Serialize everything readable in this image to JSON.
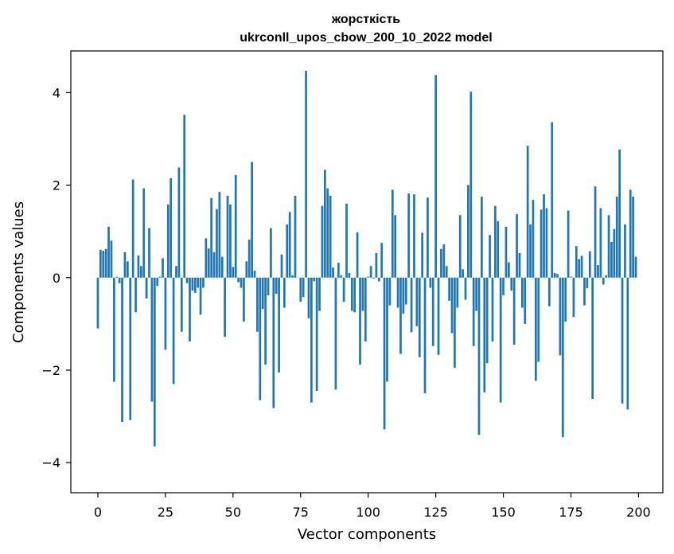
{
  "chart_data": {
    "type": "bar",
    "title_line1": "жорсткість",
    "title_line2": "ukrconll_upos_cbow_200_10_2022 model",
    "xlabel": "Vector components",
    "ylabel": "Components values",
    "xlim": [
      -10,
      209
    ],
    "ylim": [
      -4.65,
      4.9
    ],
    "xticks": [
      0,
      25,
      50,
      75,
      100,
      125,
      150,
      175,
      200
    ],
    "xtick_labels": [
      "0",
      "25",
      "50",
      "75",
      "100",
      "125",
      "150",
      "175",
      "200"
    ],
    "yticks": [
      -4,
      -2,
      0,
      2,
      4
    ],
    "ytick_labels": [
      "−4",
      "−2",
      "0",
      "2",
      "4"
    ],
    "bar_color": "#1f77b4",
    "grid": false,
    "x": [
      0,
      1,
      2,
      3,
      4,
      5,
      6,
      7,
      8,
      9,
      10,
      11,
      12,
      13,
      14,
      15,
      16,
      17,
      18,
      19,
      20,
      21,
      22,
      23,
      24,
      25,
      26,
      27,
      28,
      29,
      30,
      31,
      32,
      33,
      34,
      35,
      36,
      37,
      38,
      39,
      40,
      41,
      42,
      43,
      44,
      45,
      46,
      47,
      48,
      49,
      50,
      51,
      52,
      53,
      54,
      55,
      56,
      57,
      58,
      59,
      60,
      61,
      62,
      63,
      64,
      65,
      66,
      67,
      68,
      69,
      70,
      71,
      72,
      73,
      74,
      75,
      76,
      77,
      78,
      79,
      80,
      81,
      82,
      83,
      84,
      85,
      86,
      87,
      88,
      89,
      90,
      91,
      92,
      93,
      94,
      95,
      96,
      97,
      98,
      99,
      100,
      101,
      102,
      103,
      104,
      105,
      106,
      107,
      108,
      109,
      110,
      111,
      112,
      113,
      114,
      115,
      116,
      117,
      118,
      119,
      120,
      121,
      122,
      123,
      124,
      125,
      126,
      127,
      128,
      129,
      130,
      131,
      132,
      133,
      134,
      135,
      136,
      137,
      138,
      139,
      140,
      141,
      142,
      143,
      144,
      145,
      146,
      147,
      148,
      149,
      150,
      151,
      152,
      153,
      154,
      155,
      156,
      157,
      158,
      159,
      160,
      161,
      162,
      163,
      164,
      165,
      166,
      167,
      168,
      169,
      170,
      171,
      172,
      173,
      174,
      175,
      176,
      177,
      178,
      179,
      180,
      181,
      182,
      183,
      184,
      185,
      186,
      187,
      188,
      189,
      190,
      191,
      192,
      193,
      194,
      195,
      196,
      197,
      198,
      199
    ],
    "values": [
      -1.1,
      0.6,
      0.58,
      0.62,
      1.1,
      0.8,
      -2.25,
      0.02,
      -0.12,
      -3.12,
      0.55,
      0.35,
      -3.08,
      2.12,
      -0.75,
      0.48,
      0.25,
      1.93,
      -0.45,
      1.07,
      -2.68,
      -3.65,
      -0.18,
      0.02,
      0.42,
      -1.56,
      1.58,
      2.15,
      -2.3,
      0.25,
      2.38,
      -1.17,
      3.52,
      -0.12,
      -1.38,
      -0.28,
      -0.33,
      -0.22,
      -0.8,
      -0.22,
      0.85,
      0.63,
      1.72,
      0.55,
      1.48,
      1.85,
      0.45,
      -1.28,
      1.77,
      1.58,
      0.23,
      2.22,
      -0.1,
      -0.22,
      -0.95,
      0.35,
      0.82,
      2.5,
      0.15,
      -1.17,
      -2.65,
      -0.68,
      -1.88,
      -0.38,
      1.07,
      -2.82,
      -0.35,
      -2.05,
      0.5,
      -0.65,
      1.15,
      1.42,
      0.05,
      1.77,
      0.0,
      -0.52,
      -0.42,
      4.47,
      -0.88,
      -2.7,
      -0.08,
      -2.45,
      -0.72,
      1.55,
      2.33,
      1.93,
      1.77,
      0.22,
      -2.42,
      0.32,
      0.05,
      -0.52,
      1.6,
      0.1,
      -0.72,
      -0.75,
      0.98,
      -1.88,
      -0.72,
      -1.38,
      0.02,
      0.25,
      -0.02,
      0.53,
      -0.08,
      0.75,
      -3.28,
      -2.25,
      -0.6,
      1.9,
      1.35,
      -0.65,
      -1.65,
      -0.78,
      -0.58,
      1.82,
      -1.18,
      1.8,
      -1.05,
      -1.72,
      0.97,
      -2.5,
      1.73,
      -0.22,
      -1.48,
      4.38,
      -1.67,
      0.62,
      0.72,
      0.25,
      -0.5,
      -1.2,
      -1.95,
      -0.65,
      1.35,
      0.18,
      -0.48,
      2.0,
      4.02,
      -1.48,
      -0.72,
      -3.4,
      1.75,
      -2.48,
      -1.85,
      0.92,
      -1.38,
      1.55,
      1.22,
      -2.7,
      -0.38,
      1.1,
      0.33,
      -0.28,
      -1.45,
      1.37,
      0.53,
      -0.65,
      -1.0,
      2.85,
      1.15,
      1.68,
      -2.23,
      -1.82,
      1.47,
      1.8,
      1.5,
      -0.62,
      3.36,
      0.1,
      0.08,
      -1.68,
      -3.45,
      -0.95,
      1.45,
      0.02,
      -0.85,
      0.68,
      0.4,
      0.47,
      -0.6,
      -0.23,
      0.57,
      -2.62,
      1.97,
      0.27,
      1.5,
      -0.15,
      0.05,
      1.35,
      0.77,
      1.05,
      1.75,
      2.77,
      -2.72,
      1.15,
      -2.85,
      1.9,
      1.75,
      0.45
    ]
  }
}
